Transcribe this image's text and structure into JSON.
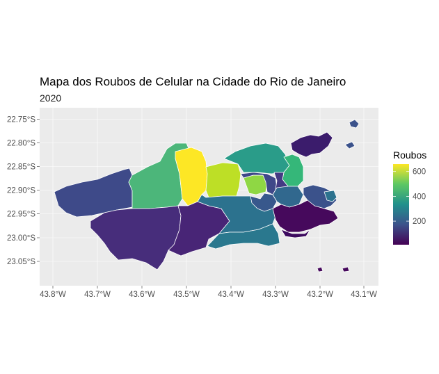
{
  "map": {
    "title": "Mapa dos Roubos de Celular na Cidade do Rio de Janeiro",
    "subtitle": "2020",
    "x_ticks": [
      "43.8°W",
      "43.7°W",
      "43.6°W",
      "43.5°W",
      "43.4°W",
      "43.3°W",
      "43.2°W",
      "43.1°W"
    ],
    "y_ticks": [
      "22.75°S",
      "22.80°S",
      "22.85°S",
      "22.90°S",
      "22.95°S",
      "23.00°S",
      "23.05°S"
    ],
    "panel_background": "#ebebeb",
    "grid_color": "#ffffff",
    "border_color": "#ffffff",
    "legend": {
      "title": "Roubos",
      "ticks": [
        "600",
        "400",
        "200"
      ],
      "tick_values": [
        600,
        400,
        200
      ],
      "range": [
        10,
        660
      ],
      "colors": [
        "#440154",
        "#3b528b",
        "#21908c",
        "#5dc863",
        "#fde725"
      ]
    }
  }
}
